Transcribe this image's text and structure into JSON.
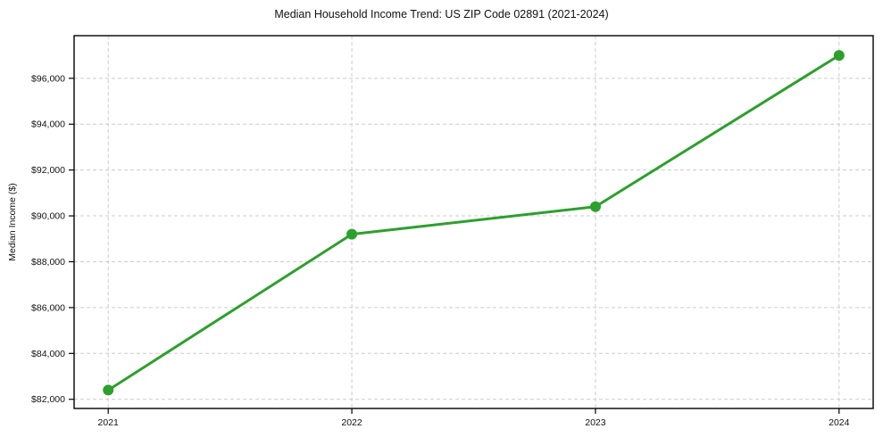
{
  "chart_data": {
    "type": "line",
    "title": "Median Household Income Trend: US ZIP Code 02891 (2021-2024)",
    "ylabel": "Median Income ($)",
    "xlabel": "",
    "x": [
      2021,
      2022,
      2023,
      2024
    ],
    "values": [
      82400,
      89200,
      90400,
      97000
    ],
    "x_tick_labels": [
      "2021",
      "2022",
      "2023",
      "2024"
    ],
    "y_ticks": [
      82000,
      84000,
      86000,
      88000,
      90000,
      92000,
      94000,
      96000
    ],
    "y_tick_labels": [
      "$82,000",
      "$84,000",
      "$86,000",
      "$88,000",
      "$90,000",
      "$92,000",
      "$94,000",
      "$96,000"
    ],
    "xlim": [
      2020.86,
      2024.14
    ],
    "ylim": [
      81600,
      97860
    ],
    "grid": true,
    "legend": "none",
    "colors": {
      "line": "#2ca02c",
      "marker": "#2ca02c",
      "grid": "#cccccc",
      "spine": "#000000",
      "text": "#111111",
      "background": "#ffffff"
    }
  }
}
